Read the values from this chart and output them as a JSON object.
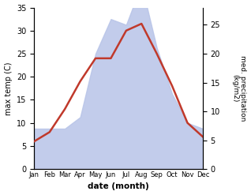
{
  "months": [
    "Jan",
    "Feb",
    "Mar",
    "Apr",
    "May",
    "Jun",
    "Jul",
    "Aug",
    "Sep",
    "Oct",
    "Nov",
    "Dec"
  ],
  "temp_max": [
    6.0,
    8.0,
    13.0,
    19.0,
    24.0,
    24.0,
    30.0,
    31.5,
    25.0,
    18.0,
    10.0,
    7.0
  ],
  "precipitation": [
    7,
    7,
    7,
    9,
    20,
    26,
    25,
    32,
    21,
    13,
    8,
    7
  ],
  "temp_color": "#c0392b",
  "precip_fill_color": "#b8c4e8",
  "temp_ylim": [
    0,
    35
  ],
  "precip_ylim": [
    0,
    28
  ],
  "temp_yticks": [
    0,
    5,
    10,
    15,
    20,
    25,
    30,
    35
  ],
  "precip_yticks": [
    0,
    5,
    10,
    15,
    20,
    25
  ],
  "xlabel": "date (month)",
  "ylabel_left": "max temp (C)",
  "ylabel_right": "med. precipitation\n(kg/m2)",
  "bg_color": "#ffffff"
}
